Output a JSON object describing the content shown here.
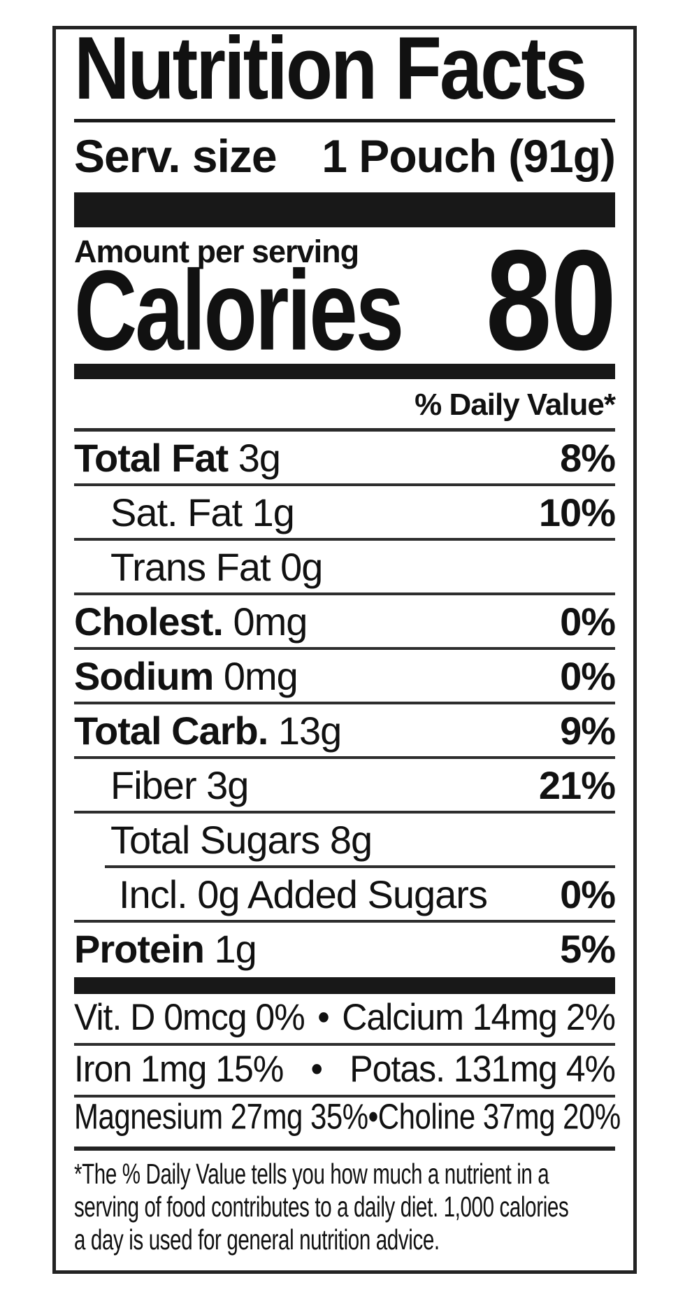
{
  "label": {
    "title": "Nutrition Facts",
    "serving": {
      "label": "Serv. size",
      "value": "1 Pouch (91g)"
    },
    "amount_per_serving": "Amount per serving",
    "calories": {
      "label": "Calories",
      "value": "80"
    },
    "daily_value_header": "% Daily Value*",
    "nutrients": [
      {
        "name": "Total Fat",
        "amount": "3g",
        "percent": "8%",
        "bold": true,
        "indent": 0,
        "divider": "full"
      },
      {
        "name": "Sat. Fat",
        "amount": "1g",
        "percent": "10%",
        "bold": false,
        "indent": 1,
        "divider": "full"
      },
      {
        "name": "Trans Fat",
        "amount": "0g",
        "percent": "",
        "bold": false,
        "indent": 1,
        "divider": "full"
      },
      {
        "name": "Cholest.",
        "amount": "0mg",
        "percent": "0%",
        "bold": true,
        "indent": 0,
        "divider": "full"
      },
      {
        "name": "Sodium",
        "amount": "0mg",
        "percent": "0%",
        "bold": true,
        "indent": 0,
        "divider": "full"
      },
      {
        "name": "Total Carb.",
        "amount": "13g",
        "percent": "9%",
        "bold": true,
        "indent": 0,
        "divider": "full"
      },
      {
        "name": "Fiber",
        "amount": "3g",
        "percent": "21%",
        "bold": false,
        "indent": 1,
        "divider": "full"
      },
      {
        "name": "Total Sugars",
        "amount": "8g",
        "percent": "",
        "bold": false,
        "indent": 1,
        "divider": "indent"
      },
      {
        "name": "Incl. 0g Added Sugars",
        "amount": "",
        "percent": "0%",
        "bold": false,
        "indent": 2,
        "divider": "full"
      },
      {
        "name": "Protein",
        "amount": "1g",
        "percent": "5%",
        "bold": true,
        "indent": 0,
        "divider": "none"
      }
    ],
    "micronutrients": [
      {
        "left": "Vit. D 0mcg 0%",
        "bullet": "•",
        "right": "Calcium 14mg 2%",
        "divider": "full",
        "small": false
      },
      {
        "left": "Iron 1mg 15%",
        "bullet": "•",
        "right": "Potas. 131mg 4%",
        "divider": "full",
        "small": false
      },
      {
        "left": "Magnesium 27mg 35%",
        "bullet": "•",
        "right": "Choline 37mg 20%",
        "divider": "none",
        "small": true
      }
    ],
    "footnote_lines": [
      "*The % Daily Value tells you how much a nutrient in a",
      "serving of food contributes to a daily diet. 1,000 calories",
      "a day is used for general nutrition advice."
    ]
  }
}
